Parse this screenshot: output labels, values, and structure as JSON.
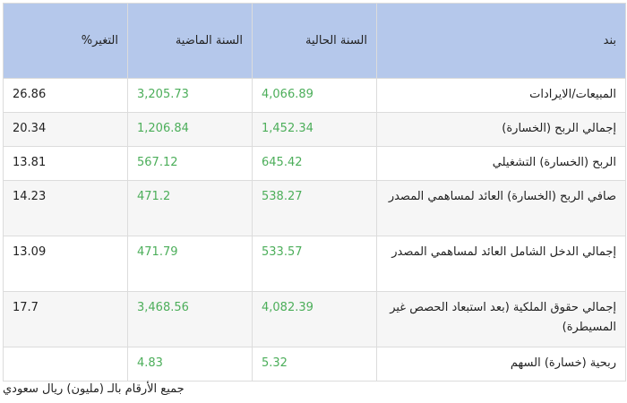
{
  "table": {
    "headers": {
      "item": "بند",
      "current": "السنة الحالية",
      "previous": "السنة الماضية",
      "change": "التغير%"
    },
    "rows": [
      {
        "item": "المبيعات/الايرادات",
        "current": "4,066.89",
        "previous": "3,205.73",
        "change": "26.86"
      },
      {
        "item": "إجمالي الربح (الخسارة)",
        "current": "1,452.34",
        "previous": "1,206.84",
        "change": "20.34"
      },
      {
        "item": "الربح (الخسارة) التشغيلي",
        "current": "645.42",
        "previous": "567.12",
        "change": "13.81"
      },
      {
        "item": "صافي الربح (الخسارة) العائد لمساهمي المصدر",
        "current": "538.27",
        "previous": "471.2",
        "change": "14.23"
      },
      {
        "item": "إجمالي الدخل الشامل العائد لمساهمي المصدر",
        "current": "533.57",
        "previous": "471.79",
        "change": "13.09"
      },
      {
        "item": "إجمالي حقوق الملكية (بعد استبعاد الحصص غير المسيطرة)",
        "current": "4,082.39",
        "previous": "3,468.56",
        "change": "17.7"
      },
      {
        "item": "ربحية (خسارة) السهم",
        "current": "5.32",
        "previous": "4.83",
        "change": ""
      }
    ]
  },
  "note": "جميع الأرقام بالـ (مليون) ريال سعودي",
  "colors": {
    "header_bg": "#b5c8eb",
    "value_green": "#4cae5a",
    "alt_row": "#f6f6f6"
  }
}
